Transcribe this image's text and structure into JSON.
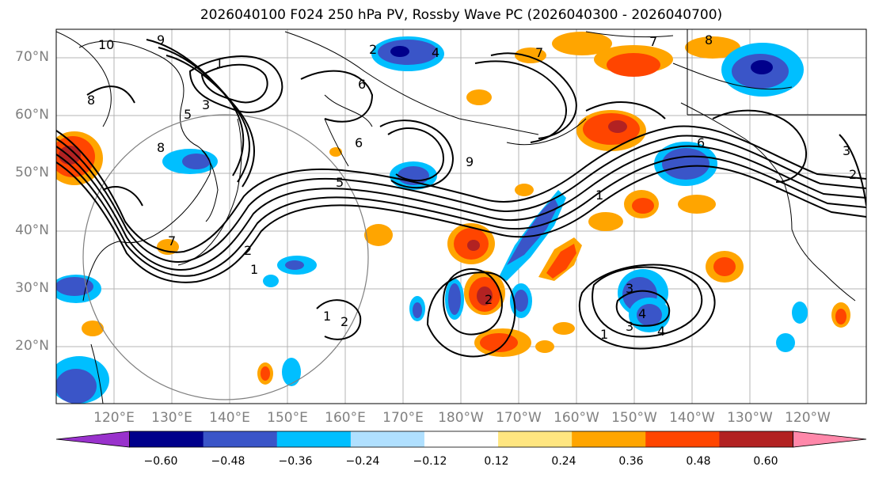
{
  "title": "2026040100 F024 250 hPa PV, Rossby Wave PC (2026040300 - 2026040700)",
  "lat_labels": [
    "70°N",
    "60°N",
    "50°N",
    "40°N",
    "30°N",
    "20°N"
  ],
  "lon_labels": [
    "120°E",
    "130°E",
    "140°E",
    "150°E",
    "160°E",
    "170°E",
    "180°W",
    "170°W",
    "160°W",
    "150°W",
    "140°W",
    "130°W",
    "120°W"
  ],
  "colorbar": {
    "ticks": [
      "−0.60",
      "−0.48",
      "−0.36",
      "−0.24",
      "−0.12",
      "0.12",
      "0.24",
      "0.36",
      "0.48",
      "0.60"
    ],
    "colors": [
      "#9932cc",
      "#00008b",
      "#3a55c8",
      "#00bfff",
      "#b0e0ff",
      "#ffffff",
      "#ffe680",
      "#ffa500",
      "#ff4500",
      "#b22222",
      "#ff88aa"
    ]
  },
  "contour_labels": [
    "10",
    "9",
    "8",
    "7",
    "6",
    "5",
    "4",
    "3",
    "2",
    "1",
    "1",
    "2",
    "3",
    "4",
    "5",
    "6",
    "7",
    "8",
    "9",
    "1",
    "2",
    "3",
    "4",
    "1",
    "2",
    "6",
    "7",
    "8",
    "3",
    "2",
    "1"
  ],
  "colors": {
    "positive_dark": "#ff4500",
    "positive": "#ffa500",
    "positive_light": "#ffe680",
    "negative_light": "#00bfff",
    "negative": "#3a55c8",
    "negative_dark": "#00008b",
    "grid": "#b4b4b4",
    "contour": "#000000",
    "axis_label": "#808080"
  }
}
